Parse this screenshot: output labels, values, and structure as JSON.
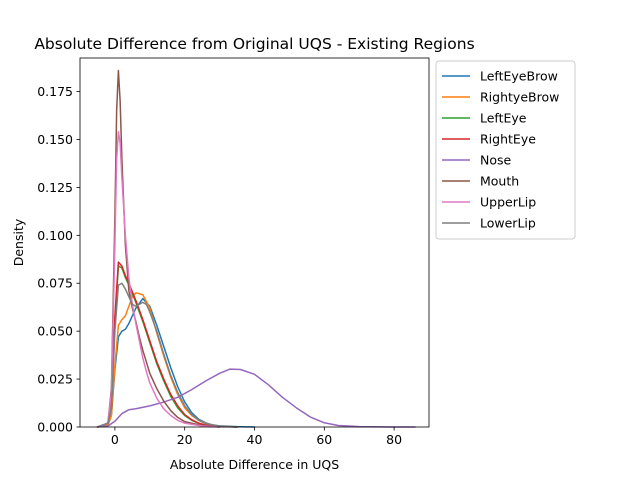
{
  "chart_data": {
    "type": "line",
    "title": "Absolute Difference from Original UQS - Existing Regions",
    "xlabel": "Absolute Difference in UQS",
    "ylabel": "Density",
    "xlim": [
      -10,
      90
    ],
    "ylim": [
      0,
      0.1925
    ],
    "xticks": [
      0,
      20,
      40,
      60,
      80
    ],
    "xtick_labels": [
      "0",
      "20",
      "40",
      "60",
      "80"
    ],
    "yticks": [
      0,
      0.025,
      0.05,
      0.075,
      0.1,
      0.125,
      0.15,
      0.175
    ],
    "ytick_labels": [
      "0.000",
      "0.025",
      "0.050",
      "0.075",
      "0.100",
      "0.125",
      "0.150",
      "0.175"
    ],
    "grid": false,
    "legend_position": "outside upper-right",
    "series": [
      {
        "name": "LeftEyeBrow",
        "color": "#1f77b4",
        "x": [
          -5,
          -2,
          -1,
          0,
          1,
          2,
          3,
          4,
          6,
          8,
          10,
          12,
          14,
          16,
          18,
          20,
          22,
          24,
          26,
          28,
          30,
          35,
          40
        ],
        "y": [
          0,
          0.001,
          0.006,
          0.03,
          0.047,
          0.05,
          0.051,
          0.054,
          0.062,
          0.067,
          0.063,
          0.053,
          0.042,
          0.031,
          0.021,
          0.013,
          0.0075,
          0.004,
          0.0022,
          0.001,
          0.0006,
          0.0002,
          0
        ]
      },
      {
        "name": "RightyeBrow",
        "color": "#ff7f0e",
        "x": [
          -5,
          -2,
          -1,
          0,
          1,
          2,
          3,
          4,
          5,
          6,
          8,
          10,
          12,
          14,
          16,
          18,
          20,
          22,
          24,
          26,
          28,
          30,
          35
        ],
        "y": [
          0,
          0.001,
          0.006,
          0.032,
          0.053,
          0.056,
          0.058,
          0.063,
          0.068,
          0.07,
          0.069,
          0.062,
          0.049,
          0.037,
          0.026,
          0.017,
          0.01,
          0.006,
          0.0035,
          0.002,
          0.0009,
          0.0004,
          0
        ]
      },
      {
        "name": "LeftEye",
        "color": "#2ca02c",
        "x": [
          -5,
          -2,
          -1,
          0,
          1,
          2,
          3,
          4,
          6,
          8,
          10,
          12,
          14,
          16,
          18,
          20,
          22,
          24,
          26,
          30,
          35
        ],
        "y": [
          0,
          0.002,
          0.01,
          0.055,
          0.084,
          0.083,
          0.078,
          0.074,
          0.065,
          0.055,
          0.044,
          0.033,
          0.024,
          0.016,
          0.01,
          0.006,
          0.0035,
          0.002,
          0.001,
          0.0003,
          0
        ]
      },
      {
        "name": "RightEye",
        "color": "#d62728",
        "x": [
          -5,
          -2,
          -1,
          0,
          1,
          2,
          3,
          4,
          6,
          8,
          10,
          12,
          14,
          16,
          18,
          20,
          22,
          24,
          26,
          30,
          35
        ],
        "y": [
          0,
          0.002,
          0.011,
          0.058,
          0.086,
          0.084,
          0.079,
          0.075,
          0.066,
          0.056,
          0.045,
          0.034,
          0.025,
          0.017,
          0.011,
          0.0065,
          0.0038,
          0.002,
          0.001,
          0.0003,
          0
        ]
      },
      {
        "name": "Nose",
        "color": "#9467bd",
        "x": [
          -5,
          -2,
          0,
          2,
          4,
          6,
          10,
          14,
          18,
          22,
          26,
          30,
          33,
          36,
          40,
          44,
          48,
          52,
          56,
          60,
          64,
          70,
          76,
          80,
          86
        ],
        "y": [
          0,
          0.0005,
          0.003,
          0.007,
          0.009,
          0.0095,
          0.011,
          0.013,
          0.0155,
          0.0195,
          0.024,
          0.028,
          0.0302,
          0.03,
          0.0275,
          0.022,
          0.0155,
          0.01,
          0.0052,
          0.0022,
          0.0008,
          0.0002,
          5e-05,
          1e-05,
          0
        ]
      },
      {
        "name": "Mouth",
        "color": "#8c564b",
        "x": [
          -5,
          -2,
          -1,
          0,
          0.5,
          1,
          1.5,
          2,
          3,
          4,
          5,
          6,
          7,
          8,
          9,
          10,
          12,
          14,
          16,
          18,
          20,
          25,
          30
        ],
        "y": [
          0,
          0.002,
          0.02,
          0.11,
          0.165,
          0.186,
          0.17,
          0.14,
          0.095,
          0.071,
          0.062,
          0.055,
          0.047,
          0.04,
          0.034,
          0.028,
          0.02,
          0.0135,
          0.0085,
          0.005,
          0.0028,
          0.0008,
          0
        ]
      },
      {
        "name": "UpperLip",
        "color": "#e377c2",
        "x": [
          -5,
          -2,
          -1,
          0,
          0.5,
          1,
          1.5,
          2,
          3,
          4,
          5,
          6,
          7,
          8,
          9,
          10,
          12,
          14,
          16,
          18,
          20,
          25,
          30
        ],
        "y": [
          0,
          0.002,
          0.018,
          0.095,
          0.14,
          0.154,
          0.148,
          0.13,
          0.1,
          0.078,
          0.064,
          0.054,
          0.045,
          0.036,
          0.029,
          0.023,
          0.015,
          0.0095,
          0.006,
          0.0035,
          0.002,
          0.0005,
          0
        ]
      },
      {
        "name": "LowerLip",
        "color": "#7f7f7f",
        "x": [
          -5,
          -2,
          -1,
          0,
          1,
          2,
          3,
          4,
          5,
          6,
          7,
          8,
          9,
          10,
          12,
          14,
          16,
          18,
          20,
          22,
          24,
          26,
          30,
          35
        ],
        "y": [
          0,
          0.002,
          0.01,
          0.05,
          0.074,
          0.075,
          0.072,
          0.068,
          0.064,
          0.063,
          0.064,
          0.065,
          0.064,
          0.06,
          0.05,
          0.038,
          0.027,
          0.018,
          0.011,
          0.0065,
          0.0035,
          0.0018,
          0.0005,
          0
        ]
      }
    ]
  }
}
